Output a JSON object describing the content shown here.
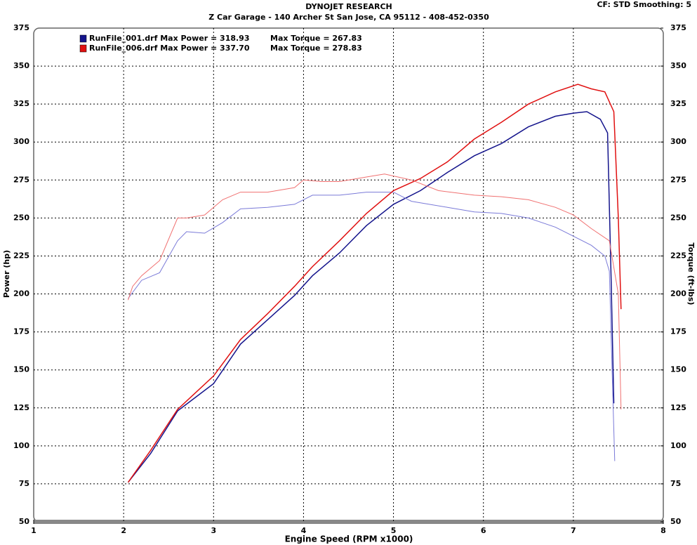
{
  "chart_data": {
    "type": "line",
    "title": "DYNOJET RESEARCH",
    "subtitle": "Z Car Garage - 140 Archer St San Jose, CA 95112 - 408-452-0350",
    "corner_note": "CF: STD  Smoothing: 5",
    "xlabel": "Engine Speed (RPM x1000)",
    "ylabel": "Power (hp)",
    "y2label": "Torque (ft-lbs)",
    "xlim": [
      1,
      8
    ],
    "xticks": [
      1,
      2,
      3,
      4,
      5,
      6,
      7,
      8
    ],
    "ylim": [
      50,
      375
    ],
    "yticks": [
      50,
      75,
      100,
      125,
      150,
      175,
      200,
      225,
      250,
      275,
      300,
      325,
      350,
      375
    ],
    "y2lim": [
      50,
      375
    ],
    "y2ticks": [
      50,
      75,
      100,
      125,
      150,
      175,
      200,
      225,
      250,
      275,
      300,
      325,
      350,
      375
    ],
    "grid": true,
    "series": [
      {
        "name": "RunFile_001.drf Max Power = 318.93",
        "color": "#14148c",
        "x": [
          2.05,
          2.3,
          2.6,
          2.8,
          3.0,
          3.3,
          3.6,
          3.9,
          4.1,
          4.4,
          4.7,
          5.0,
          5.3,
          5.6,
          5.9,
          6.2,
          6.5,
          6.8,
          7.0,
          7.15,
          7.3,
          7.38,
          7.42,
          7.45
        ],
        "values": [
          76,
          95,
          123,
          132,
          141,
          167,
          183,
          199,
          212,
          227,
          245,
          259,
          268,
          280,
          291,
          299,
          310,
          317,
          319,
          320,
          315,
          306,
          209,
          128
        ]
      },
      {
        "name": "Max Torque = 267.83",
        "color": "#7a7ad8",
        "axis": "y2",
        "x": [
          2.05,
          2.2,
          2.4,
          2.6,
          2.7,
          2.9,
          3.1,
          3.3,
          3.6,
          3.9,
          4.1,
          4.4,
          4.7,
          5.0,
          5.2,
          5.6,
          5.9,
          6.2,
          6.5,
          6.8,
          7.0,
          7.2,
          7.35,
          7.4,
          7.43,
          7.46
        ],
        "values": [
          197,
          209,
          214,
          235,
          241,
          240,
          247,
          256,
          257,
          259,
          265,
          265,
          267,
          267,
          261,
          257,
          254,
          253,
          250,
          244,
          238,
          232,
          225,
          215,
          150,
          90
        ]
      },
      {
        "name": "RunFile_006.drf Max Power = 337.70",
        "color": "#e01010",
        "x": [
          2.05,
          2.3,
          2.6,
          2.8,
          3.0,
          3.3,
          3.6,
          3.9,
          4.1,
          4.4,
          4.7,
          5.0,
          5.3,
          5.6,
          5.9,
          6.2,
          6.5,
          6.8,
          7.05,
          7.2,
          7.35,
          7.45,
          7.5,
          7.53
        ],
        "values": [
          76,
          97,
          124,
          135,
          146,
          170,
          187,
          205,
          218,
          235,
          253,
          268,
          276,
          287,
          302,
          313,
          325,
          333,
          338,
          335,
          333,
          320,
          250,
          190
        ]
      },
      {
        "name": "Max Torque = 278.83",
        "color": "#f07070",
        "axis": "y2",
        "x": [
          2.05,
          2.1,
          2.2,
          2.4,
          2.6,
          2.7,
          2.9,
          3.1,
          3.3,
          3.6,
          3.9,
          4.0,
          4.2,
          4.4,
          4.7,
          4.9,
          5.2,
          5.5,
          5.9,
          6.2,
          6.5,
          6.8,
          7.0,
          7.2,
          7.4,
          7.5,
          7.53
        ],
        "values": [
          196,
          205,
          212,
          222,
          250,
          250,
          252,
          262,
          267,
          267,
          270,
          275,
          274,
          274,
          277,
          279,
          275,
          268,
          265,
          264,
          262,
          257,
          252,
          243,
          235,
          200,
          124
        ]
      }
    ]
  }
}
